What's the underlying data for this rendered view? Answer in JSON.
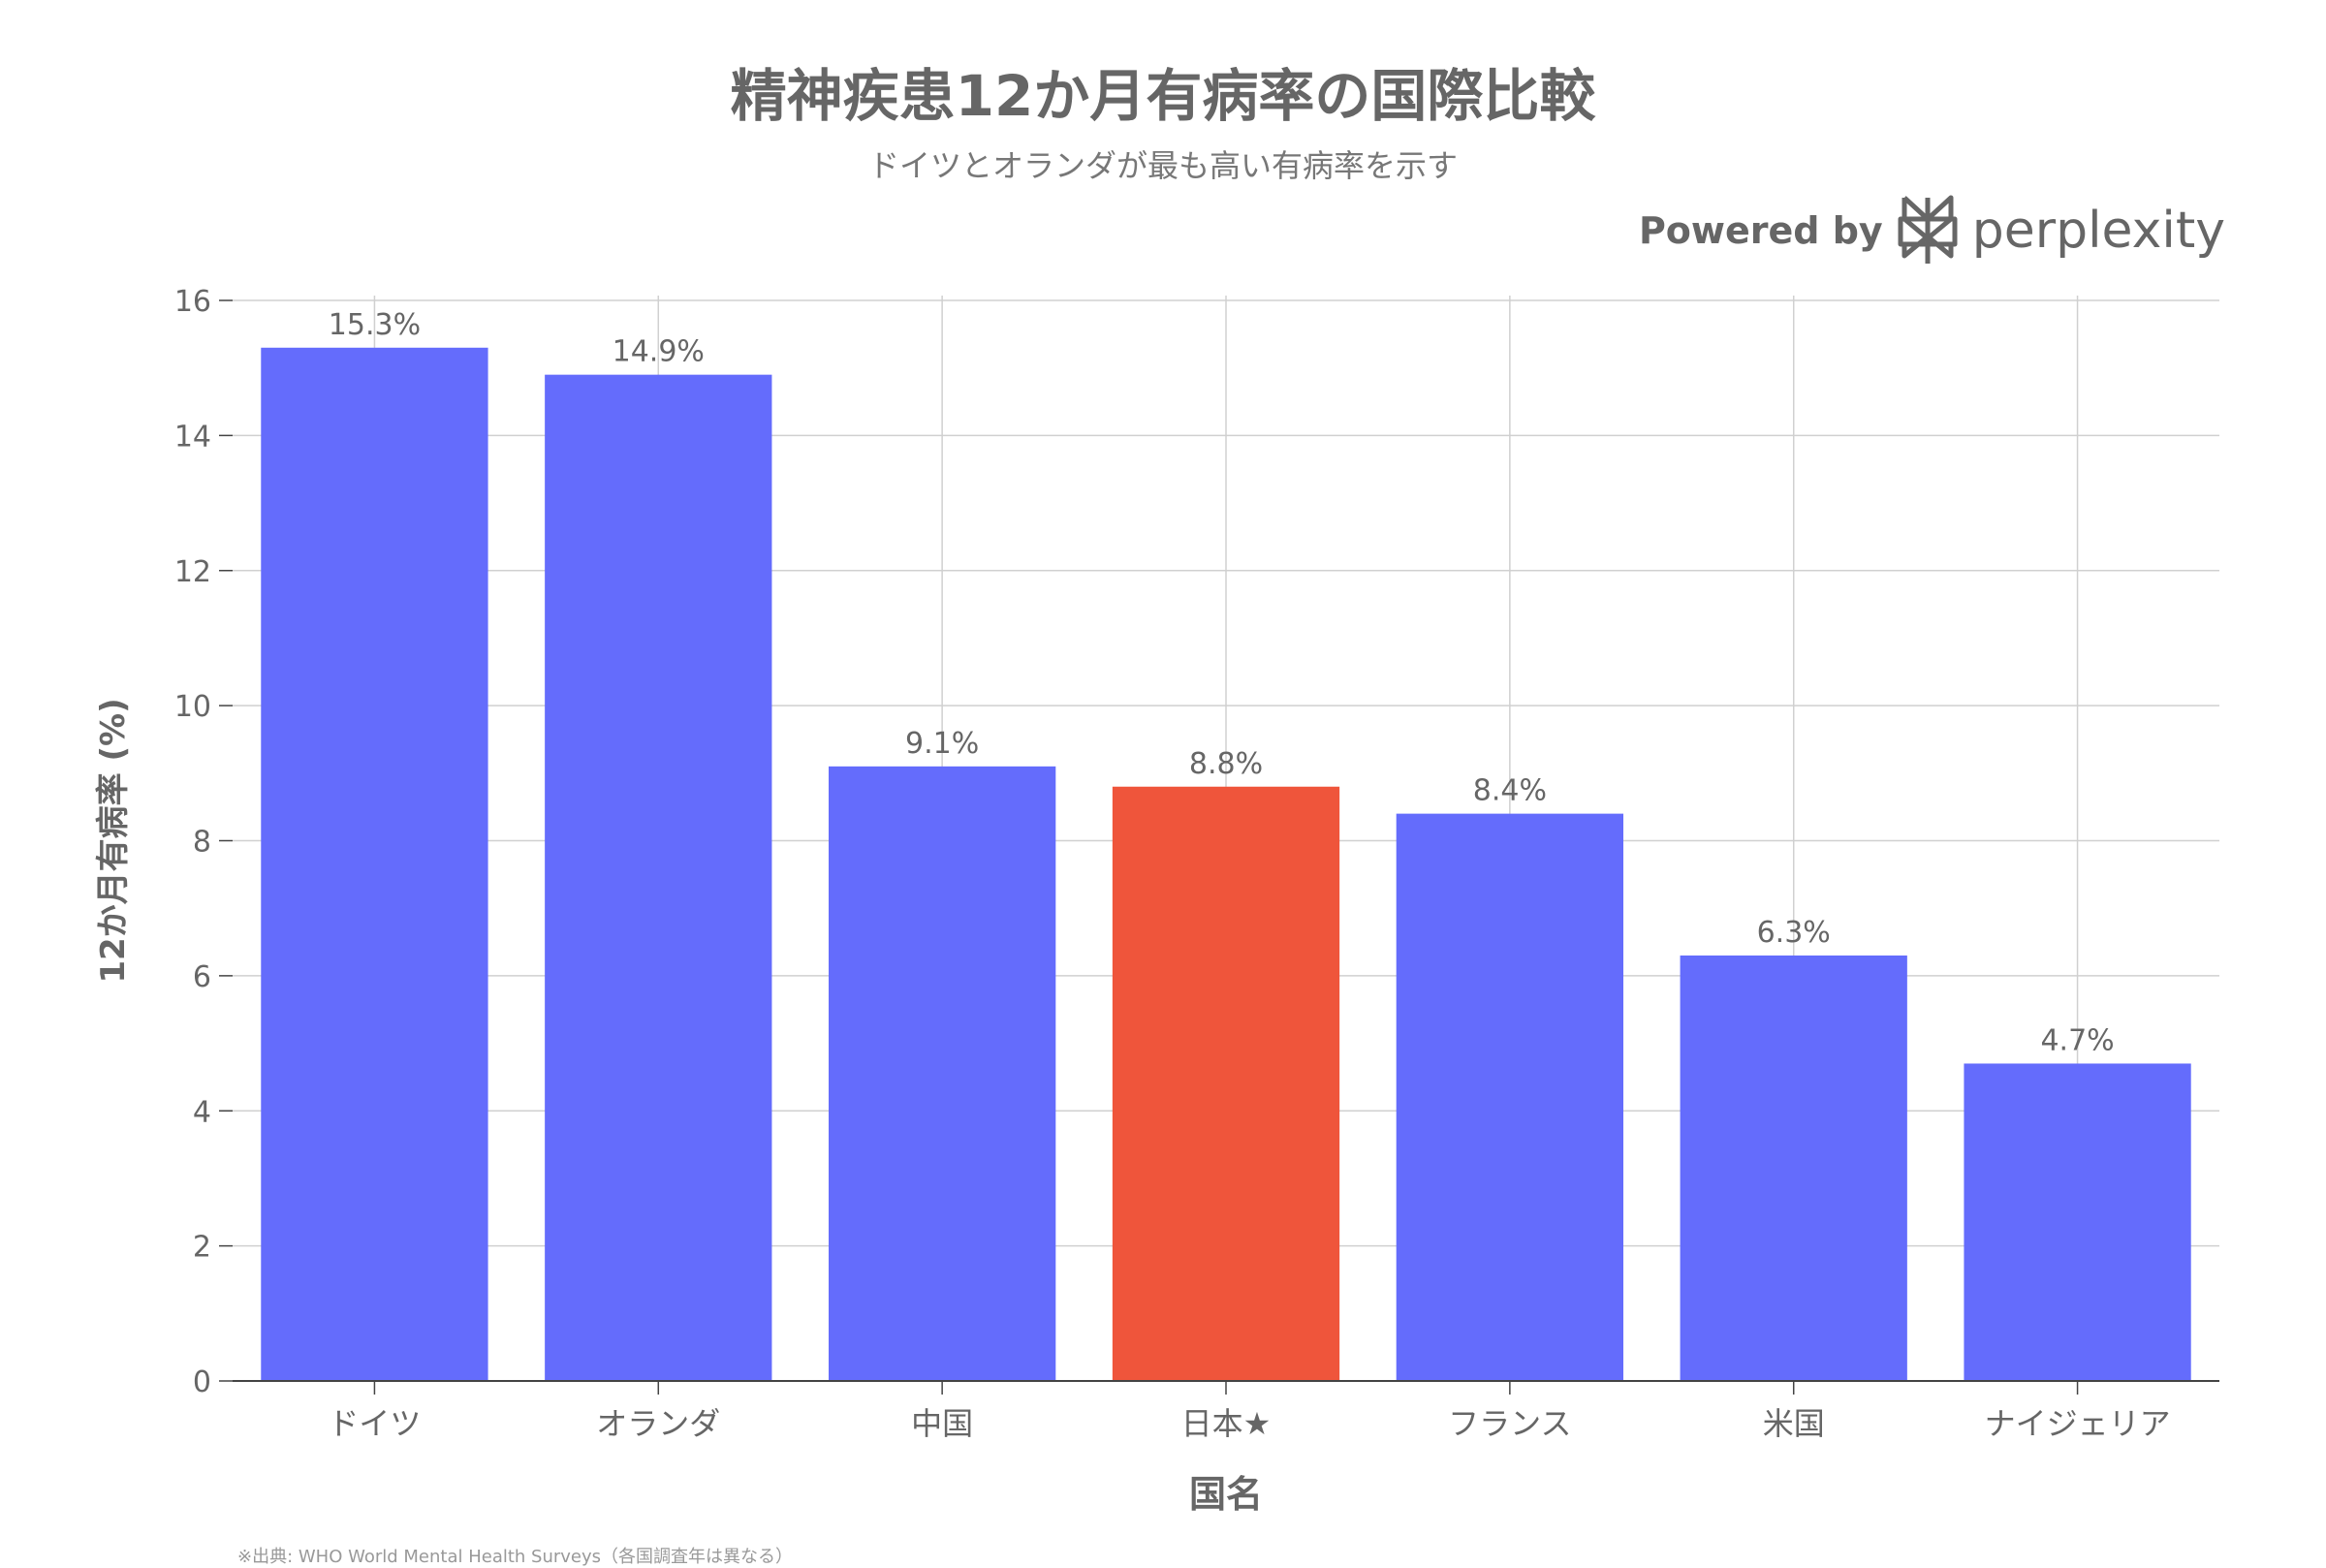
{
  "colors": {
    "bar": "#646cfc",
    "highlight": "#ef553b",
    "text": "#666666",
    "grid": "#d0d0d0",
    "axis": "#444444"
  },
  "brand": {
    "powered_by": "Powered by",
    "name": "perplexity",
    "icon": "perplexity-logo-icon"
  },
  "footnote": "※出典: WHO World Mental Health Surveys（各国調査年は異なる）",
  "chart_data": {
    "type": "bar",
    "title": "精神疾患12か月有病率の国際比較",
    "subtitle": "ドイツとオランダが最も高い有病率を示す",
    "xlabel": "国名",
    "ylabel": "12か月有病率 (%)",
    "ylim": [
      0,
      16
    ],
    "yticks": [
      "0",
      "2",
      "4",
      "6",
      "8",
      "10",
      "12",
      "14",
      "16"
    ],
    "grid": true,
    "categories": [
      "ドイツ",
      "オランダ",
      "中国",
      "日本★",
      "フランス",
      "米国",
      "ナイジェリア"
    ],
    "values": [
      15.3,
      14.9,
      9.1,
      8.8,
      8.4,
      6.3,
      4.7
    ],
    "value_labels": [
      "15.3%",
      "14.9%",
      "9.1%",
      "8.8%",
      "8.4%",
      "6.3%",
      "4.7%"
    ],
    "highlight_category": "日本★"
  }
}
